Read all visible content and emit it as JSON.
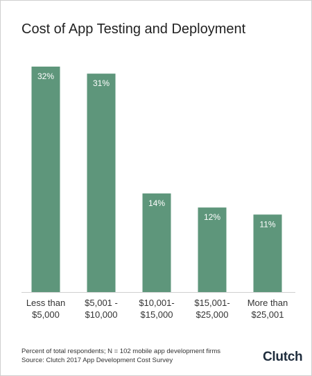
{
  "chart_data": {
    "type": "bar",
    "title": "Cost of App Testing and Deployment",
    "categories": [
      [
        "Less than",
        "$5,000"
      ],
      [
        "$5,001 -",
        "$10,000"
      ],
      [
        "$10,001-",
        "$15,000"
      ],
      [
        "$15,001-",
        "$25,000"
      ],
      [
        "More than",
        "$25,001"
      ]
    ],
    "values": [
      32,
      31,
      14,
      12,
      11
    ],
    "value_labels": [
      "32%",
      "31%",
      "14%",
      "12%",
      "11%"
    ],
    "xlabel": "",
    "ylabel": "",
    "ylim": [
      0,
      32
    ],
    "grid": false,
    "bar_color": "#5e967b",
    "label_color": "#ffffff"
  },
  "footnote": {
    "line1": "Percent of total respondents; N = 102 mobile app development firms",
    "line2": "Source: Clutch 2017 App Development Cost Survey"
  },
  "brand": {
    "logo_text": "Clutch"
  }
}
